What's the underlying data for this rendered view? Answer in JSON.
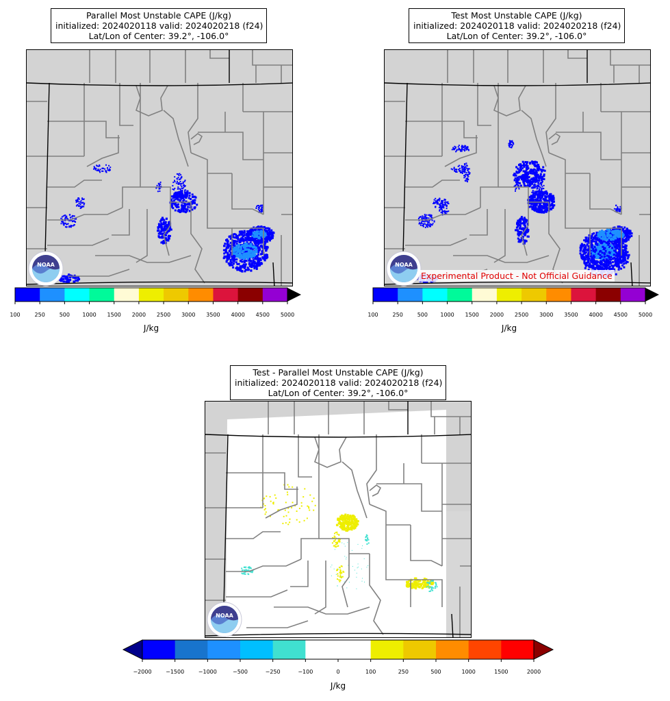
{
  "panels": [
    {
      "id": "parallel",
      "title_lines": [
        "Parallel Most Unstable CAPE (J/kg)",
        "initialized: 2024020118 valid: 2024020218 (f24)",
        "Lat/Lon of Center: 39.2°, -106.0°"
      ]
    },
    {
      "id": "test",
      "title_lines": [
        "Test Most Unstable CAPE (J/kg)",
        "initialized: 2024020118 valid: 2024020218 (f24)",
        "Lat/Lon of Center: 39.2°, -106.0°"
      ],
      "disclaimer": "Experimental Product - Not Official Guidance"
    },
    {
      "id": "diff",
      "title_lines": [
        "Test - Parallel Most Unstable CAPE (J/kg)",
        "initialized: 2024020118 valid: 2024020218 (f24)",
        "Lat/Lon of Center: 39.2°, -106.0°"
      ]
    }
  ],
  "logo_text": "NOAA",
  "cape_colorbar": {
    "units": "J/kg",
    "ticks": [
      "100",
      "250",
      "500",
      "1000",
      "1500",
      "2000",
      "2500",
      "3000",
      "3500",
      "4000",
      "4500",
      "5000"
    ],
    "colors": [
      "#0000ff",
      "#1e90ff",
      "#00ffff",
      "#00fa9a",
      "#fffbd5",
      "#eeee00",
      "#eec900",
      "#ff8c00",
      "#dc143c",
      "#8b0000",
      "#9400d3"
    ],
    "extend_color": "#000000"
  },
  "diff_colorbar": {
    "units": "J/kg",
    "ticks": [
      "−2000",
      "−1500",
      "−1000",
      "−500",
      "−250",
      "−100",
      "0",
      "100",
      "250",
      "500",
      "1000",
      "1500",
      "2000"
    ],
    "colors": [
      "#0000ff",
      "#1874cd",
      "#1e90ff",
      "#00bfff",
      "#40e0d0",
      "#ffffff",
      "#ffffff",
      "#eeee00",
      "#eec900",
      "#ff8c00",
      "#ff4500",
      "#ff0000"
    ],
    "extend_low_color": "#00008b",
    "extend_high_color": "#8b0000"
  },
  "colors": {
    "land": "#d3d3d3",
    "county_line": "#808080",
    "state_line": "#000000",
    "cape_low": "#0000ff",
    "cape_mid": "#1e90ff",
    "diff_pos": "#eeee00",
    "diff_neg": "#40e0d0"
  }
}
